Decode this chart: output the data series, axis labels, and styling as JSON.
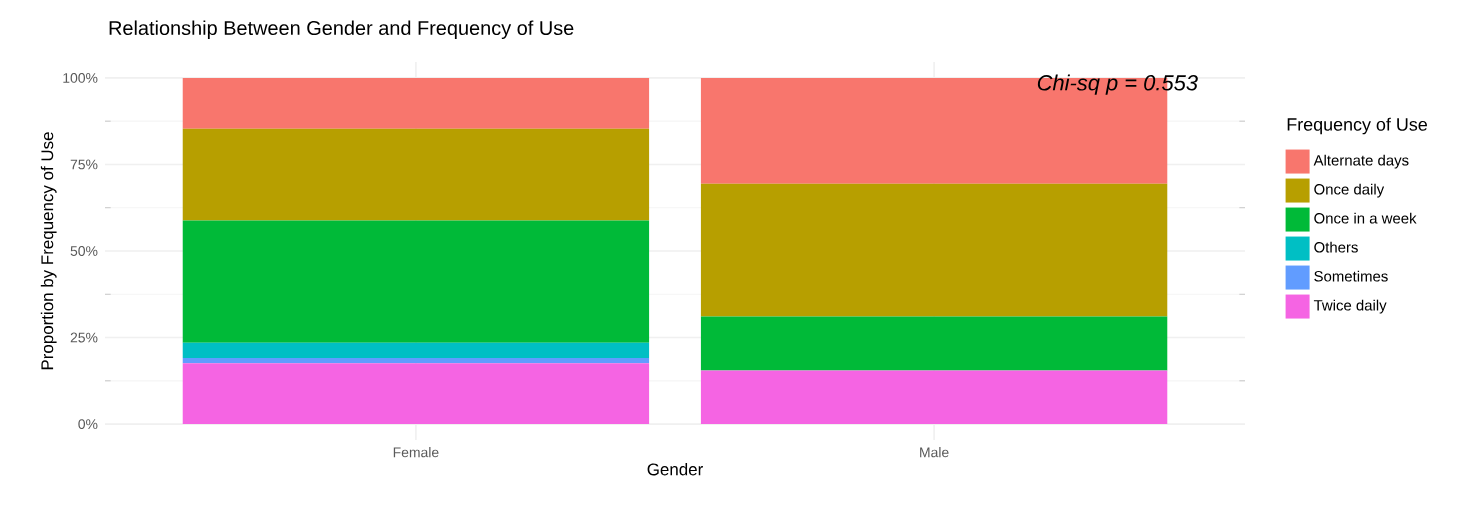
{
  "chart_data": {
    "type": "bar",
    "stacked": true,
    "title": "Relationship Between Gender and Frequency of Use",
    "xlabel": "Gender",
    "ylabel": "Proportion by Frequency of Use",
    "legend_title": "Frequency of Use",
    "legend": "right",
    "grid": true,
    "categories": [
      "Female",
      "Male"
    ],
    "series": [
      {
        "name": "Twice daily",
        "color": "#f564e3",
        "values": [
          17.6,
          15.5
        ]
      },
      {
        "name": "Sometimes",
        "color": "#619cff",
        "values": [
          1.5,
          0
        ]
      },
      {
        "name": "Others",
        "color": "#00bfc4",
        "values": [
          4.4,
          0
        ]
      },
      {
        "name": "Once in a week",
        "color": "#00ba38",
        "values": [
          35.3,
          15.6
        ]
      },
      {
        "name": "Once daily",
        "color": "#b79f00",
        "values": [
          26.5,
          38.3
        ]
      },
      {
        "name": "Alternate days",
        "color": "#f8766d",
        "values": [
          14.7,
          30.6
        ]
      }
    ],
    "ylim": [
      0,
      100
    ],
    "yticks": [
      {
        "value": 0,
        "label": "0%"
      },
      {
        "value": 25,
        "label": "25%"
      },
      {
        "value": 50,
        "label": "50%"
      },
      {
        "value": 75,
        "label": "75%"
      },
      {
        "value": 100,
        "label": "100%"
      }
    ],
    "annotations": [
      "Chi-sq p = 0.553"
    ]
  }
}
